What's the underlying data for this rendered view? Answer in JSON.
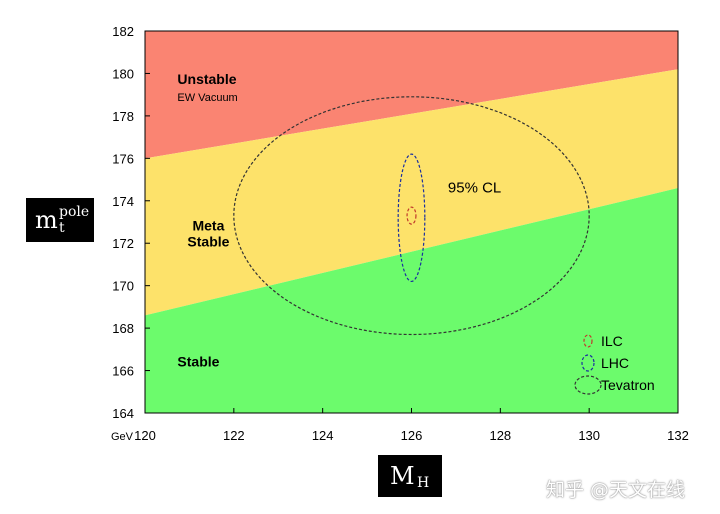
{
  "chart_data": {
    "type": "scatter",
    "xlim": [
      120,
      132
    ],
    "ylim": [
      164,
      182
    ],
    "x_ticks": [
      120,
      122,
      124,
      126,
      128,
      130,
      132
    ],
    "y_ticks": [
      164,
      166,
      168,
      170,
      172,
      174,
      176,
      178,
      180,
      182
    ],
    "x_unit": "GeV",
    "xlabel": {
      "main": "M",
      "sub": "H"
    },
    "ylabel": {
      "main": "m",
      "sup": "pole",
      "sub": "t"
    },
    "grid": false,
    "regions": [
      {
        "label": "Unstable",
        "sublabel": "EW Vacuum",
        "color": "#fa8472",
        "label_x": 121.0,
        "label_y": 179.5
      },
      {
        "label": "Meta\nStable",
        "sublabel": "",
        "color": "#fde26a",
        "label_x": 121.0,
        "label_y": 172.6
      },
      {
        "label": "Stable",
        "sublabel": "",
        "color": "#6cfb6c",
        "label_x": 121.0,
        "label_y": 166.2
      }
    ],
    "boundaries": {
      "unstable_meta": [
        [
          120,
          176.0
        ],
        [
          132,
          180.2
        ]
      ],
      "meta_stable": [
        [
          120,
          168.6
        ],
        [
          132,
          174.6
        ]
      ]
    },
    "ellipses": [
      {
        "name": "Tevatron",
        "cx": 126.0,
        "cy": 173.3,
        "rx": 4.0,
        "ry": 5.6,
        "color": "#333333"
      },
      {
        "name": "LHC",
        "cx": 126.0,
        "cy": 173.2,
        "rx": 0.3,
        "ry": 3.0,
        "color": "#1a2fa0"
      },
      {
        "name": "ILC",
        "cx": 126.0,
        "cy": 173.3,
        "rx": 0.1,
        "ry": 0.4,
        "color": "#c0392b"
      }
    ],
    "annotations": [
      {
        "text": "95% CL",
        "x": 127.0,
        "y": 174.4
      }
    ],
    "legend": {
      "placement": "bottom-right",
      "entries": [
        "ILC",
        "LHC",
        "Tevatron"
      ]
    }
  },
  "watermark": "知乎 @天文在线"
}
